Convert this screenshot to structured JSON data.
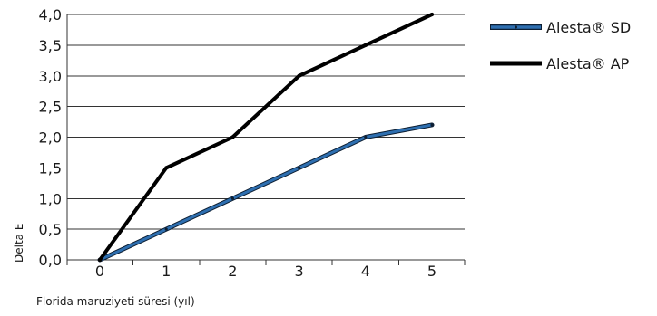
{
  "chart_data": {
    "type": "line",
    "title": "",
    "xlabel": "Florida maruziyeti süresi (yıl)",
    "ylabel": "Delta E",
    "x": [
      0,
      1,
      2,
      3,
      4,
      5
    ],
    "x_tick_labels": [
      "0",
      "1",
      "2",
      "3",
      "4",
      "5"
    ],
    "y_tick_labels": [
      "0,0",
      "0,5",
      "1,0",
      "1,5",
      "2,0",
      "2,5",
      "3,0",
      "3,5",
      "4,0"
    ],
    "ylim": [
      0,
      4
    ],
    "y_ticks": [
      0,
      0.5,
      1,
      1.5,
      2,
      2.5,
      3,
      3.5,
      4
    ],
    "grid": "horizontal",
    "legend_position": "right",
    "series": [
      {
        "name": "Alesta® SD",
        "values": [
          0,
          0.5,
          1,
          1.5,
          2,
          2.2
        ],
        "color": "#2e6fb0",
        "style": "outlined"
      },
      {
        "name": "Alesta® AP",
        "values": [
          0,
          1.5,
          2,
          3,
          3.5,
          4
        ],
        "color": "#000000",
        "style": "solid"
      }
    ]
  }
}
